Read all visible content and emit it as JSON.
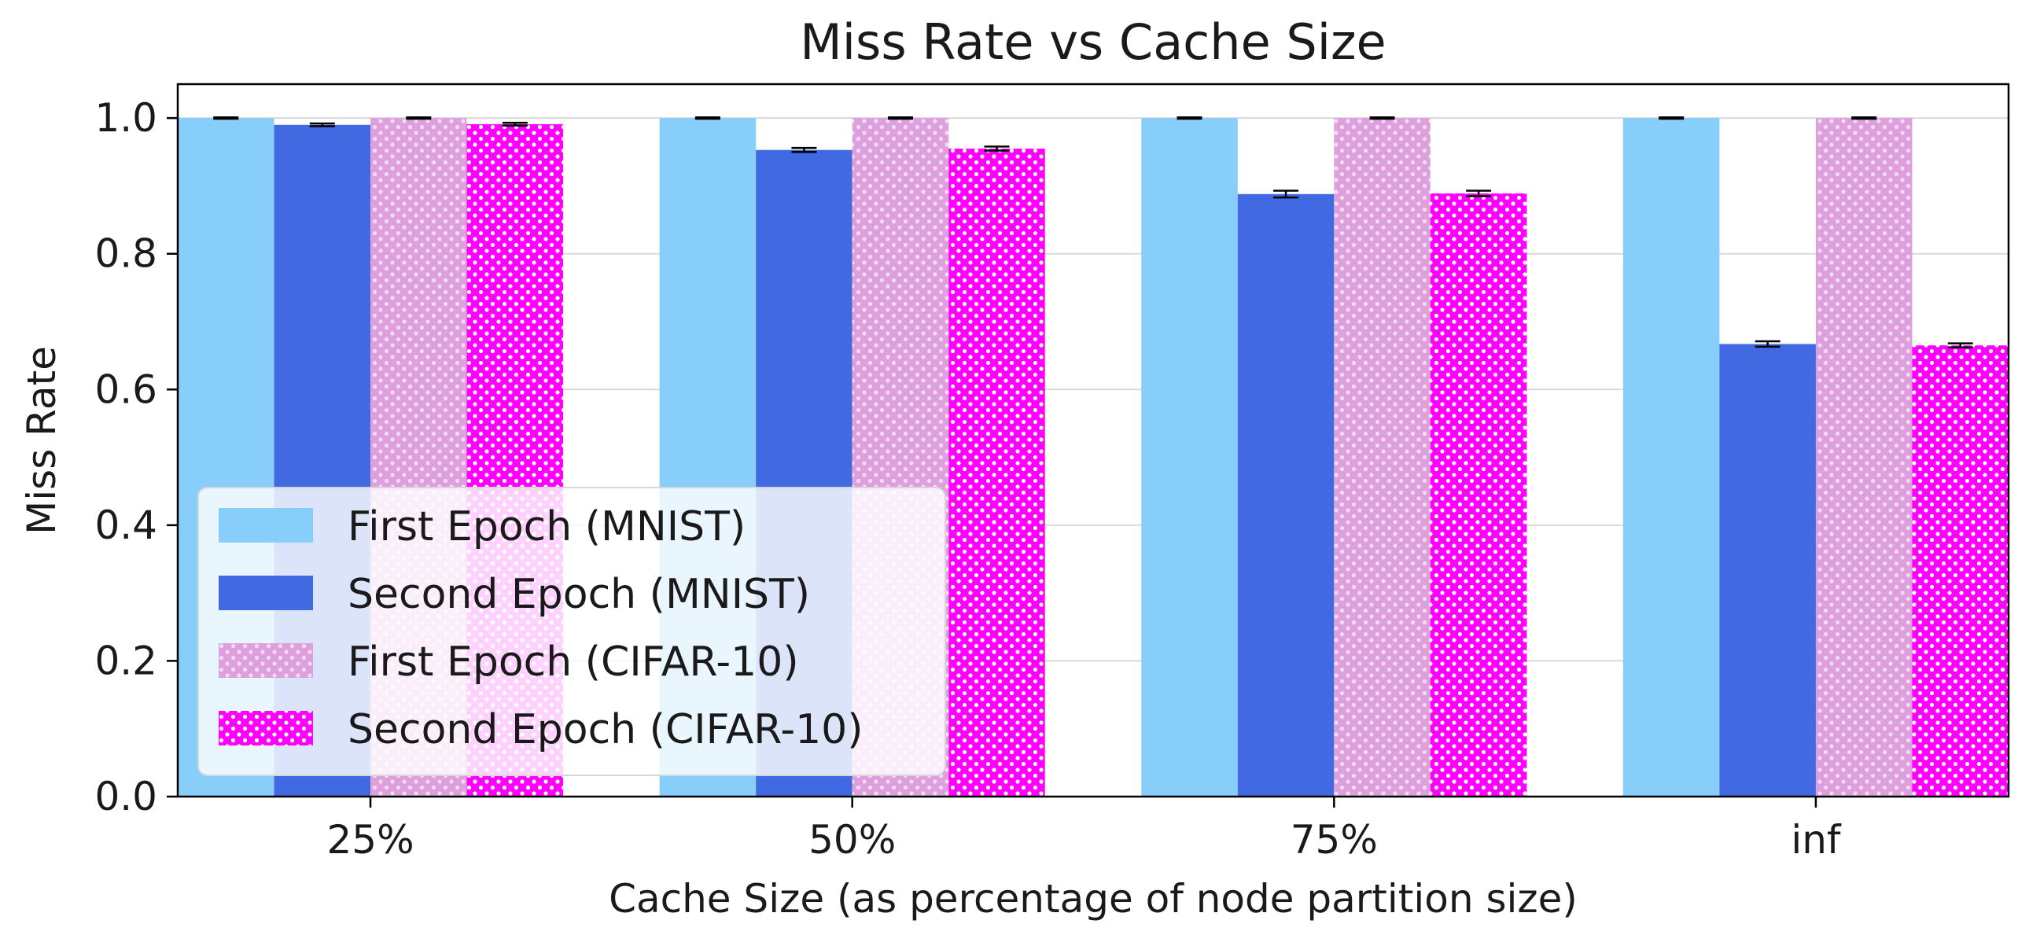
{
  "chart_data": {
    "type": "bar",
    "title": "Miss Rate vs Cache Size",
    "xlabel": "Cache Size (as percentage of node partition size)",
    "ylabel": "Miss Rate",
    "categories": [
      "25%",
      "50%",
      "75%",
      "inf"
    ],
    "ylim": [
      0,
      1.05
    ],
    "yticks": [
      0.0,
      0.2,
      0.4,
      0.6,
      0.8,
      1.0
    ],
    "ytick_labels": [
      "0.0",
      "0.2",
      "0.4",
      "0.6",
      "0.8",
      "1.0"
    ],
    "grid": "horizontal",
    "legend_position": "lower-left",
    "series": [
      {
        "name": "First Epoch (MNIST)",
        "values": [
          1.0,
          1.0,
          1.0,
          1.0
        ],
        "errors": [
          0.001,
          0.001,
          0.001,
          0.001
        ],
        "color": "#87CEFA",
        "pattern": "solid"
      },
      {
        "name": "Second Epoch (MNIST)",
        "values": [
          0.99,
          0.953,
          0.888,
          0.667
        ],
        "errors": [
          0.002,
          0.003,
          0.005,
          0.004
        ],
        "color": "#4169E1",
        "pattern": "solid"
      },
      {
        "name": "First Epoch (CIFAR-10)",
        "values": [
          1.0,
          1.0,
          1.0,
          1.0
        ],
        "errors": [
          0.001,
          0.001,
          0.001,
          0.001
        ],
        "color": "#DDA0DD",
        "pattern": "dots"
      },
      {
        "name": "Second Epoch (CIFAR-10)",
        "values": [
          0.991,
          0.955,
          0.889,
          0.665
        ],
        "errors": [
          0.002,
          0.003,
          0.004,
          0.003
        ],
        "color": "#FF00FF",
        "pattern": "dots"
      }
    ]
  }
}
